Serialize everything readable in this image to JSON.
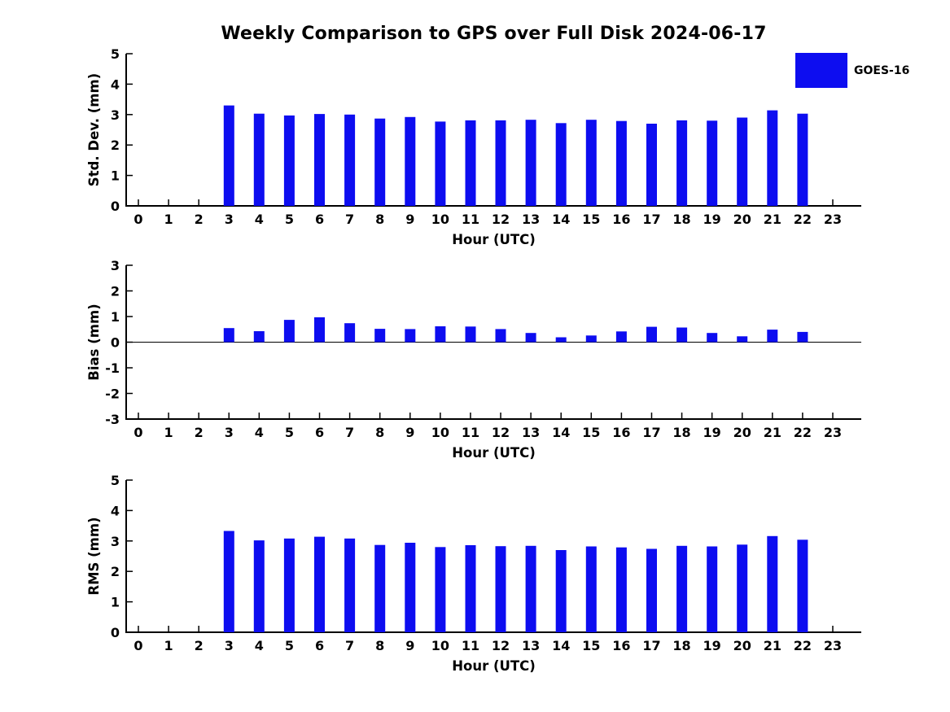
{
  "title": "Weekly Comparison to GPS over Full Disk 2024-06-17",
  "legend": {
    "label": "GOES-16",
    "swatch_color": "#0d0df0"
  },
  "colors": {
    "bar": "#0d0df0",
    "axis": "#000000",
    "text": "#000000",
    "background": "#ffffff"
  },
  "chart_data": [
    {
      "id": "std-dev",
      "type": "bar",
      "title": "",
      "ylabel": "Std. Dev. (mm)",
      "xlabel": "Hour (UTC)",
      "ylim": [
        0,
        5
      ],
      "yticks": [
        0,
        1,
        2,
        3,
        4,
        5
      ],
      "grid": false,
      "legend_position": "top-right",
      "series_name": "GOES-16",
      "categories": [
        0,
        1,
        2,
        3,
        4,
        5,
        6,
        7,
        8,
        9,
        10,
        11,
        12,
        13,
        14,
        15,
        16,
        17,
        18,
        19,
        20,
        21,
        22,
        23
      ],
      "values": [
        null,
        null,
        null,
        3.3,
        3.03,
        2.97,
        3.02,
        3.0,
        2.87,
        2.92,
        2.77,
        2.81,
        2.81,
        2.83,
        2.72,
        2.83,
        2.79,
        2.7,
        2.81,
        2.8,
        2.9,
        3.14,
        3.03,
        null
      ]
    },
    {
      "id": "bias",
      "type": "bar",
      "title": "",
      "ylabel": "Bias (mm)",
      "xlabel": "Hour (UTC)",
      "ylim": [
        -3,
        3
      ],
      "yticks": [
        -3,
        -2,
        -1,
        0,
        1,
        2,
        3
      ],
      "zero_line": true,
      "grid": false,
      "series_name": "GOES-16",
      "categories": [
        0,
        1,
        2,
        3,
        4,
        5,
        6,
        7,
        8,
        9,
        10,
        11,
        12,
        13,
        14,
        15,
        16,
        17,
        18,
        19,
        20,
        21,
        22,
        23
      ],
      "values": [
        null,
        null,
        null,
        0.55,
        0.43,
        0.87,
        0.97,
        0.74,
        0.52,
        0.51,
        0.62,
        0.61,
        0.51,
        0.36,
        0.19,
        0.26,
        0.42,
        0.6,
        0.57,
        0.36,
        0.23,
        0.49,
        0.4,
        null
      ]
    },
    {
      "id": "rms",
      "type": "bar",
      "title": "",
      "ylabel": "RMS (mm)",
      "xlabel": "Hour (UTC)",
      "ylim": [
        0,
        5
      ],
      "yticks": [
        0,
        1,
        2,
        3,
        4,
        5
      ],
      "grid": false,
      "series_name": "GOES-16",
      "categories": [
        0,
        1,
        2,
        3,
        4,
        5,
        6,
        7,
        8,
        9,
        10,
        11,
        12,
        13,
        14,
        15,
        16,
        17,
        18,
        19,
        20,
        21,
        22,
        23
      ],
      "values": [
        null,
        null,
        null,
        3.33,
        3.02,
        3.08,
        3.14,
        3.08,
        2.87,
        2.94,
        2.8,
        2.86,
        2.83,
        2.84,
        2.7,
        2.82,
        2.79,
        2.74,
        2.84,
        2.82,
        2.88,
        3.16,
        3.04,
        null
      ]
    }
  ]
}
